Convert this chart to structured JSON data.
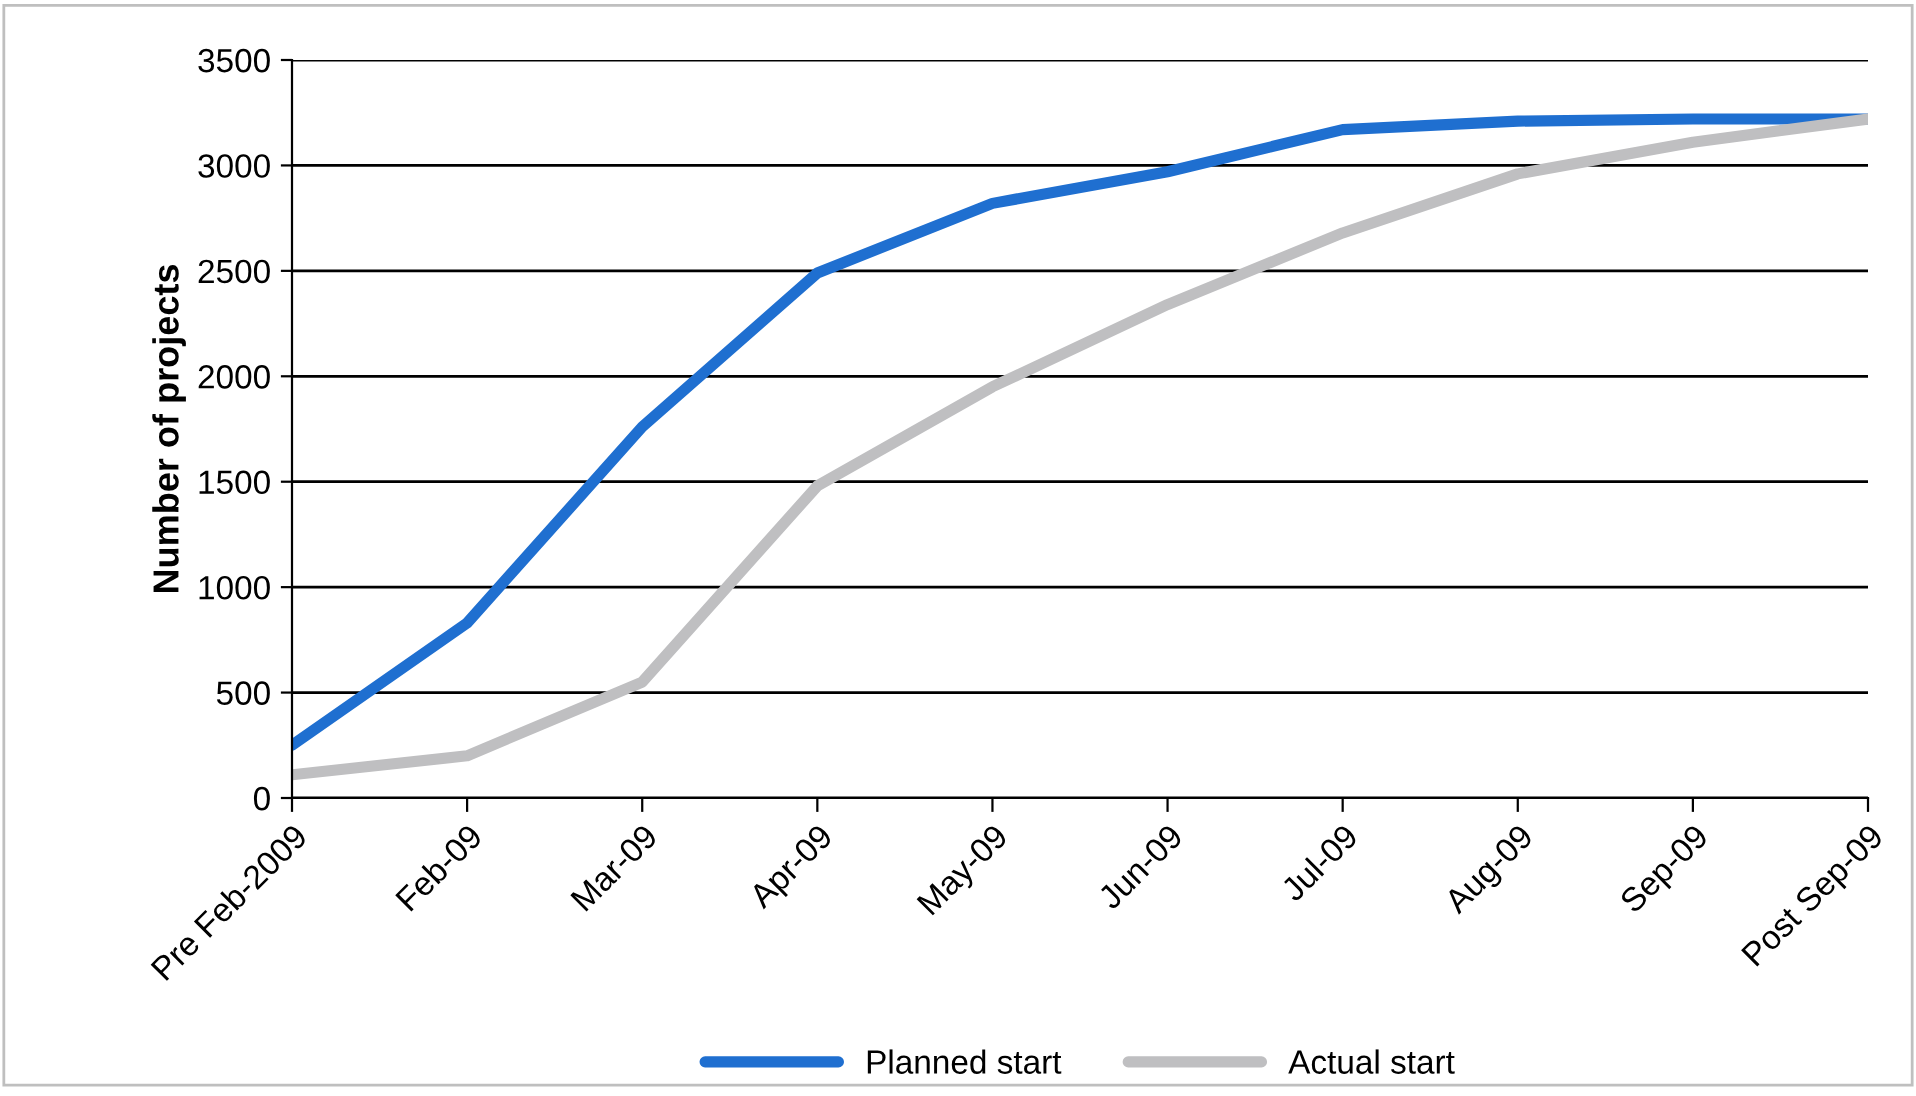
{
  "chart_data": {
    "type": "line",
    "ylabel": "Number of projects",
    "categories": [
      "Pre Feb-2009",
      "Feb-09",
      "Mar-09",
      "Apr-09",
      "May-09",
      "Jun-09",
      "Jul-09",
      "Aug-09",
      "Sep-09",
      "Post Sep-09"
    ],
    "series": [
      {
        "name": "Planned start",
        "color": "#1f6fd0",
        "values": [
          250,
          830,
          1760,
          2490,
          2820,
          2970,
          3170,
          3210,
          3220,
          3220
        ]
      },
      {
        "name": "Actual start",
        "color": "#bfbfc1",
        "values": [
          110,
          200,
          550,
          1480,
          1950,
          2340,
          2680,
          2960,
          3110,
          3220
        ]
      }
    ],
    "ylim": [
      0,
      3500
    ],
    "yticks": [
      0,
      500,
      1000,
      1500,
      2000,
      2500,
      3000,
      3500
    ],
    "grid": "y",
    "legend": "bottom",
    "marker": "none",
    "line_style": "solid"
  }
}
